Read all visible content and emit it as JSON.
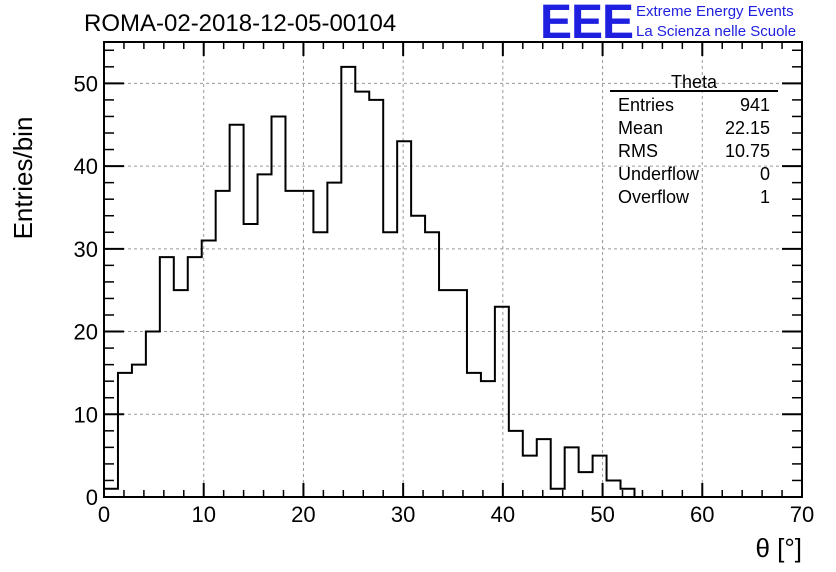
{
  "title": "ROMA-02-2018-12-05-00104",
  "logo": {
    "mark": "EEE",
    "line1": "Extreme Energy Events",
    "line2": "La Scienza nelle Scuole",
    "color": "#1f1fe0"
  },
  "stats": {
    "title": "Theta",
    "rows": [
      {
        "label": "Entries",
        "value": "941"
      },
      {
        "label": "Mean",
        "value": "22.15"
      },
      {
        "label": "RMS",
        "value": "10.75"
      },
      {
        "label": "Underflow",
        "value": "0"
      },
      {
        "label": "Overflow",
        "value": "1"
      }
    ]
  },
  "chart_data": {
    "type": "bar",
    "histogram": true,
    "xlabel": "θ [°]",
    "ylabel": "Entries/bin",
    "xlim": [
      0,
      70
    ],
    "ylim": [
      0,
      55
    ],
    "grid": true,
    "xticks": [
      0,
      10,
      20,
      30,
      40,
      50,
      60,
      70
    ],
    "yticks": [
      0,
      10,
      20,
      30,
      40,
      50
    ],
    "bin_edges": [
      0,
      1.4,
      2.8,
      4.2,
      5.6,
      7.0,
      8.4,
      9.8,
      11.2,
      12.6,
      14.0,
      15.4,
      16.8,
      18.2,
      19.6,
      21.0,
      22.4,
      23.8,
      25.2,
      26.6,
      28.0,
      29.4,
      30.8,
      32.2,
      33.6,
      35.0,
      36.4,
      37.8,
      39.2,
      40.6,
      42.0,
      43.4,
      44.8,
      46.2,
      47.6,
      49.0,
      50.4,
      51.8,
      53.2
    ],
    "values": [
      1,
      15,
      16,
      20,
      29,
      25,
      29,
      31,
      37,
      45,
      33,
      39,
      46,
      37,
      37,
      32,
      38,
      52,
      49,
      48,
      32,
      43,
      34,
      32,
      25,
      25,
      15,
      14,
      23,
      8,
      5,
      7,
      1,
      6,
      3,
      5,
      2,
      1
    ]
  }
}
